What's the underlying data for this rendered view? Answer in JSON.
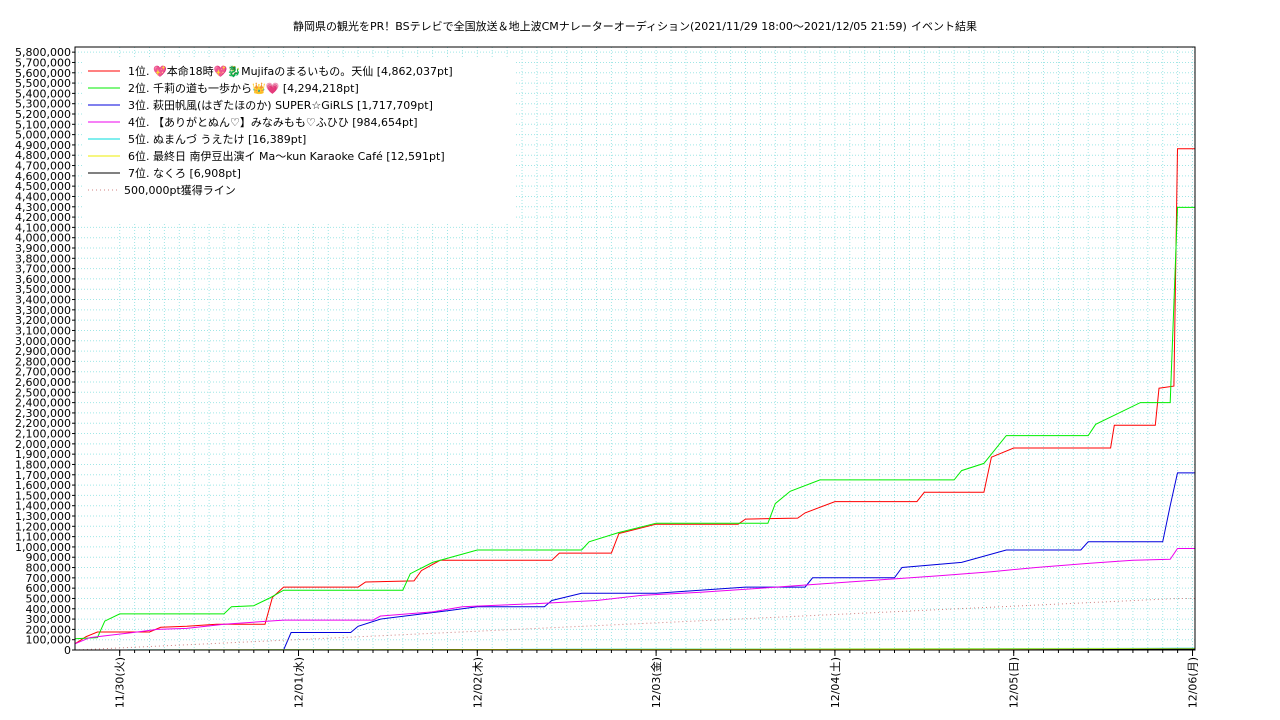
{
  "chart_data": {
    "type": "line",
    "title": "静岡県の観光をPR！BSテレビで全国放送＆地上波CMナレーターオーディション(2021/11/29 18:00～2021/12/05 21:59)",
    "subtitle": "イベント結果",
    "xlabel": "",
    "ylabel": "",
    "x_range": [
      "2021-11-29 18:00",
      "2021-12-06 00:20"
    ],
    "ylim": [
      0,
      5850000
    ],
    "grid": true,
    "legend_position": "top-left",
    "x_tick_labels": [
      {
        "t": "2021-11-30 00:00",
        "label": "11/30(火)"
      },
      {
        "t": "2021-12-01 00:00",
        "label": "12/01(水)"
      },
      {
        "t": "2021-12-02 00:00",
        "label": "12/02(木)"
      },
      {
        "t": "2021-12-03 00:00",
        "label": "12/03(金)"
      },
      {
        "t": "2021-12-04 00:00",
        "label": "12/04(土)"
      },
      {
        "t": "2021-12-05 00:00",
        "label": "12/05(日)"
      },
      {
        "t": "2021-12-06 00:00",
        "label": "12/06(月)"
      }
    ],
    "y_tick_labels": [
      "0",
      "100,000",
      "200,000",
      "300,000",
      "400,000",
      "500,000",
      "600,000",
      "700,000",
      "800,000",
      "900,000",
      "1,000,000",
      "1,100,000",
      "1,200,000",
      "1,300,000",
      "1,400,000",
      "1,500,000",
      "1,600,000",
      "1,700,000",
      "1,800,000",
      "1,900,000",
      "2,000,000",
      "2,100,000",
      "2,200,000",
      "2,300,000",
      "2,400,000",
      "2,500,000",
      "2,600,000",
      "2,700,000",
      "2,800,000",
      "2,900,000",
      "3,000,000",
      "3,100,000",
      "3,200,000",
      "3,300,000",
      "3,400,000",
      "3,500,000",
      "3,600,000",
      "3,700,000",
      "3,800,000",
      "3,900,000",
      "4,000,000",
      "4,100,000",
      "4,200,000",
      "4,300,000",
      "4,400,000",
      "4,500,000",
      "4,600,000",
      "4,700,000",
      "4,800,000",
      "4,900,000",
      "5,000,000",
      "5,100,000",
      "5,200,000",
      "5,300,000",
      "5,400,000",
      "5,500,000",
      "5,600,000",
      "5,700,000",
      "5,800,000"
    ],
    "series": [
      {
        "name": "1位. 💖本命18時💖🐉Mujifaのまるいもの。天仙 [4,862,037pt]",
        "color": "#ff0000",
        "points": [
          [
            "2021-11-29 18:00",
            60000
          ],
          [
            "2021-11-29 19:30",
            130000
          ],
          [
            "2021-11-29 21:00",
            175000
          ],
          [
            "2021-11-30 04:00",
            175000
          ],
          [
            "2021-11-30 05:30",
            220000
          ],
          [
            "2021-11-30 09:00",
            230000
          ],
          [
            "2021-11-30 13:00",
            250000
          ],
          [
            "2021-11-30 19:30",
            250000
          ],
          [
            "2021-11-30 20:30",
            510000
          ],
          [
            "2021-11-30 22:00",
            610000
          ],
          [
            "2021-12-01 08:00",
            610000
          ],
          [
            "2021-12-01 09:00",
            660000
          ],
          [
            "2021-12-01 15:30",
            670000
          ],
          [
            "2021-12-01 16:30",
            770000
          ],
          [
            "2021-12-01 19:00",
            870000
          ],
          [
            "2021-12-02 10:00",
            870000
          ],
          [
            "2021-12-02 11:00",
            940000
          ],
          [
            "2021-12-02 18:00",
            940000
          ],
          [
            "2021-12-02 19:00",
            1130000
          ],
          [
            "2021-12-03 00:00",
            1220000
          ],
          [
            "2021-12-03 11:00",
            1220000
          ],
          [
            "2021-12-03 12:00",
            1270000
          ],
          [
            "2021-12-03 19:00",
            1280000
          ],
          [
            "2021-12-03 20:00",
            1330000
          ],
          [
            "2021-12-04 00:00",
            1440000
          ],
          [
            "2021-12-04 11:00",
            1440000
          ],
          [
            "2021-12-04 12:00",
            1530000
          ],
          [
            "2021-12-04 20:00",
            1530000
          ],
          [
            "2021-12-04 21:00",
            1870000
          ],
          [
            "2021-12-05 00:00",
            1960000
          ],
          [
            "2021-12-05 13:00",
            1960000
          ],
          [
            "2021-12-05 13:30",
            2180000
          ],
          [
            "2021-12-05 19:00",
            2180000
          ],
          [
            "2021-12-05 19:30",
            2540000
          ],
          [
            "2021-12-05 21:30",
            2560000
          ],
          [
            "2021-12-05 21:59",
            4862037
          ],
          [
            "2021-12-06 00:20",
            4862037
          ]
        ]
      },
      {
        "name": "2位. 千莉の道も一歩から👑💗 [4,294,218pt]",
        "color": "#00ee00",
        "points": [
          [
            "2021-11-29 18:00",
            110000
          ],
          [
            "2021-11-29 21:00",
            120000
          ],
          [
            "2021-11-29 22:00",
            280000
          ],
          [
            "2021-11-30 00:00",
            350000
          ],
          [
            "2021-11-30 14:00",
            350000
          ],
          [
            "2021-11-30 15:00",
            420000
          ],
          [
            "2021-11-30 18:00",
            430000
          ],
          [
            "2021-11-30 20:00",
            500000
          ],
          [
            "2021-11-30 22:00",
            580000
          ],
          [
            "2021-12-01 14:00",
            580000
          ],
          [
            "2021-12-01 15:00",
            740000
          ],
          [
            "2021-12-01 18:00",
            850000
          ],
          [
            "2021-12-02 00:00",
            970000
          ],
          [
            "2021-12-02 14:00",
            970000
          ],
          [
            "2021-12-02 15:00",
            1050000
          ],
          [
            "2021-12-02 19:00",
            1140000
          ],
          [
            "2021-12-03 00:00",
            1230000
          ],
          [
            "2021-12-03 15:00",
            1230000
          ],
          [
            "2021-12-03 16:00",
            1420000
          ],
          [
            "2021-12-03 18:00",
            1540000
          ],
          [
            "2021-12-03 22:00",
            1650000
          ],
          [
            "2021-12-04 16:00",
            1650000
          ],
          [
            "2021-12-04 17:00",
            1740000
          ],
          [
            "2021-12-04 20:00",
            1810000
          ],
          [
            "2021-12-04 23:00",
            2080000
          ],
          [
            "2021-12-05 10:00",
            2080000
          ],
          [
            "2021-12-05 11:00",
            2190000
          ],
          [
            "2021-12-05 17:00",
            2400000
          ],
          [
            "2021-12-05 21:00",
            2400000
          ],
          [
            "2021-12-05 21:59",
            4294218
          ],
          [
            "2021-12-06 00:20",
            4294218
          ]
        ]
      },
      {
        "name": "3位. 萩田帆風(はぎたほのか) SUPER☆GiRLS [1,717,709pt]",
        "color": "#0000dd",
        "points": [
          [
            "2021-11-29 18:00",
            0
          ],
          [
            "2021-11-30 22:00",
            0
          ],
          [
            "2021-11-30 23:00",
            170000
          ],
          [
            "2021-12-01 07:00",
            170000
          ],
          [
            "2021-12-01 08:00",
            230000
          ],
          [
            "2021-12-01 11:00",
            300000
          ],
          [
            "2021-12-01 20:00",
            380000
          ],
          [
            "2021-12-02 00:00",
            420000
          ],
          [
            "2021-12-02 09:00",
            420000
          ],
          [
            "2021-12-02 10:00",
            480000
          ],
          [
            "2021-12-02 14:00",
            550000
          ],
          [
            "2021-12-03 00:00",
            550000
          ],
          [
            "2021-12-03 12:00",
            610000
          ],
          [
            "2021-12-03 20:00",
            610000
          ],
          [
            "2021-12-03 21:00",
            700000
          ],
          [
            "2021-12-04 08:00",
            700000
          ],
          [
            "2021-12-04 09:00",
            800000
          ],
          [
            "2021-12-04 17:00",
            850000
          ],
          [
            "2021-12-04 23:00",
            970000
          ],
          [
            "2021-12-05 09:00",
            970000
          ],
          [
            "2021-12-05 10:00",
            1050000
          ],
          [
            "2021-12-05 20:00",
            1050000
          ],
          [
            "2021-12-05 21:00",
            1400000
          ],
          [
            "2021-12-05 21:59",
            1717709
          ],
          [
            "2021-12-06 00:20",
            1717709
          ]
        ]
      },
      {
        "name": "4位. 【ありがとぬん♡】みなみもも♡ふひひ [984,654pt]",
        "color": "#ee00ee",
        "points": [
          [
            "2021-11-29 18:00",
            60000
          ],
          [
            "2021-11-29 20:00",
            120000
          ],
          [
            "2021-11-30 03:00",
            180000
          ],
          [
            "2021-11-30 05:00",
            200000
          ],
          [
            "2021-11-30 09:00",
            210000
          ],
          [
            "2021-11-30 14:00",
            250000
          ],
          [
            "2021-11-30 22:00",
            290000
          ],
          [
            "2021-12-01 10:00",
            290000
          ],
          [
            "2021-12-01 11:00",
            330000
          ],
          [
            "2021-12-01 18:00",
            370000
          ],
          [
            "2021-12-01 22:00",
            420000
          ],
          [
            "2021-12-02 08:00",
            450000
          ],
          [
            "2021-12-02 16:00",
            480000
          ],
          [
            "2021-12-02 22:00",
            530000
          ],
          [
            "2021-12-03 06:00",
            560000
          ],
          [
            "2021-12-03 14:00",
            600000
          ],
          [
            "2021-12-03 22:00",
            640000
          ],
          [
            "2021-12-04 06:00",
            680000
          ],
          [
            "2021-12-04 14:00",
            720000
          ],
          [
            "2021-12-04 21:00",
            760000
          ],
          [
            "2021-12-05 03:00",
            800000
          ],
          [
            "2021-12-05 10:00",
            840000
          ],
          [
            "2021-12-05 16:00",
            870000
          ],
          [
            "2021-12-05 21:00",
            880000
          ],
          [
            "2021-12-05 21:59",
            984654
          ],
          [
            "2021-12-06 00:20",
            984654
          ]
        ]
      },
      {
        "name": "5位. ぬまんづ うえたけ [16,389pt]",
        "color": "#00dddd",
        "points": [
          [
            "2021-11-29 18:00",
            0
          ],
          [
            "2021-12-05 21:59",
            16389
          ],
          [
            "2021-12-06 00:20",
            16389
          ]
        ]
      },
      {
        "name": "6位. 最終日 南伊豆出演イ Ma〜kun Karaoke Café [12,591pt]",
        "color": "#eeee00",
        "points": [
          [
            "2021-11-29 18:00",
            0
          ],
          [
            "2021-12-05 21:59",
            12591
          ],
          [
            "2021-12-06 00:20",
            12591
          ]
        ]
      },
      {
        "name": "7位. なくろ [6,908pt]",
        "color": "#000000",
        "points": [
          [
            "2021-11-29 18:00",
            0
          ],
          [
            "2021-12-04 20:00",
            0
          ],
          [
            "2021-12-05 21:59",
            6908
          ],
          [
            "2021-12-06 00:20",
            6908
          ]
        ]
      },
      {
        "name": "500,000pt獲得ライン",
        "color": "#d08080",
        "dashed": true,
        "points": [
          [
            "2021-11-29 18:00",
            0
          ],
          [
            "2021-12-05 21:59",
            500000
          ],
          [
            "2021-12-06 00:20",
            500000
          ]
        ]
      }
    ]
  }
}
